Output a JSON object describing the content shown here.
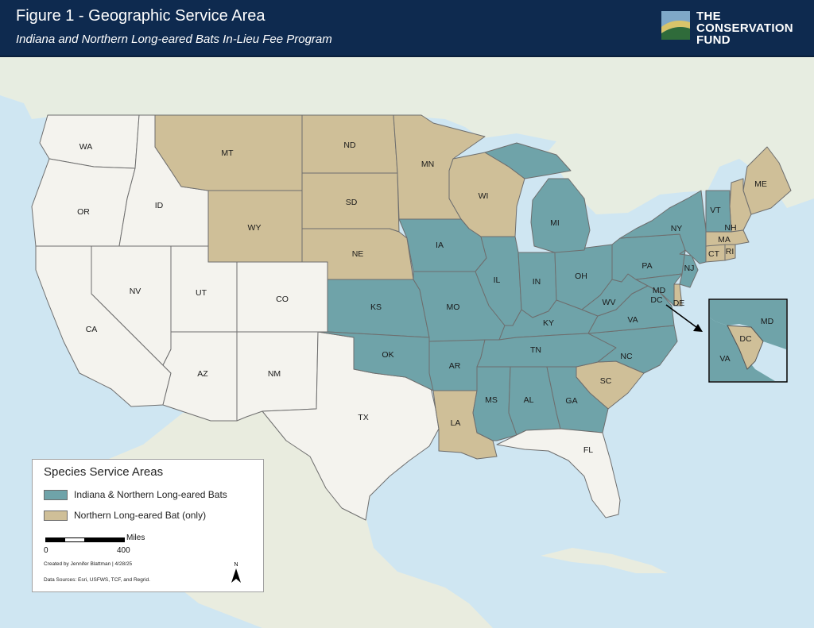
{
  "header": {
    "title": "Figure 1 - Geographic Service Area",
    "subtitle": "Indiana and Northern Long-eared Bats In-Lieu Fee Program"
  },
  "logo": {
    "lines": [
      "THE",
      "CONSERVATION",
      "FUND"
    ]
  },
  "colors": {
    "both": "#6fa3a9",
    "nleb_only": "#cfbf98",
    "outside": "#f4f3ee",
    "water": "#cfe6f2",
    "header_bg": "#0e2a4f"
  },
  "states": {
    "WA": "WA",
    "OR": "OR",
    "CA": "CA",
    "ID": "ID",
    "NV": "NV",
    "UT": "UT",
    "AZ": "AZ",
    "MT": "MT",
    "WY": "WY",
    "CO": "CO",
    "NM": "NM",
    "ND": "ND",
    "SD": "SD",
    "NE": "NE",
    "KS": "KS",
    "OK": "OK",
    "TX": "TX",
    "MN": "MN",
    "IA": "IA",
    "MO": "MO",
    "AR": "AR",
    "LA": "LA",
    "WI": "WI",
    "IL": "IL",
    "MI": "MI",
    "IN": "IN",
    "OH": "OH",
    "KY": "KY",
    "TN": "TN",
    "MS": "MS",
    "AL": "AL",
    "GA": "GA",
    "FL": "FL",
    "SC": "SC",
    "NC": "NC",
    "VA": "VA",
    "WV": "WV",
    "PA": "PA",
    "NY": "NY",
    "VT": "VT",
    "NH": "NH",
    "ME": "ME",
    "MA": "MA",
    "CT": "CT",
    "RI": "RI",
    "NJ": "NJ",
    "DE": "DE",
    "MD": "MD",
    "DC": "DC"
  },
  "inset": {
    "md": "MD",
    "dc": "DC",
    "va": "VA"
  },
  "legend": {
    "title": "Species Service Areas",
    "items": [
      {
        "label": "Indiana & Northern Long-eared Bats",
        "color": "#6fa3a9"
      },
      {
        "label": "Northern Long-eared Bat (only)",
        "color": "#cfbf98"
      }
    ],
    "scale": {
      "zero": "0",
      "max": "400",
      "units": "Miles"
    },
    "credit": "Created by Jennifer Blattman | 4/28/25",
    "sources": "Data Sources: Esri, USFWS, TCF, and Regrid.",
    "north": "N"
  }
}
